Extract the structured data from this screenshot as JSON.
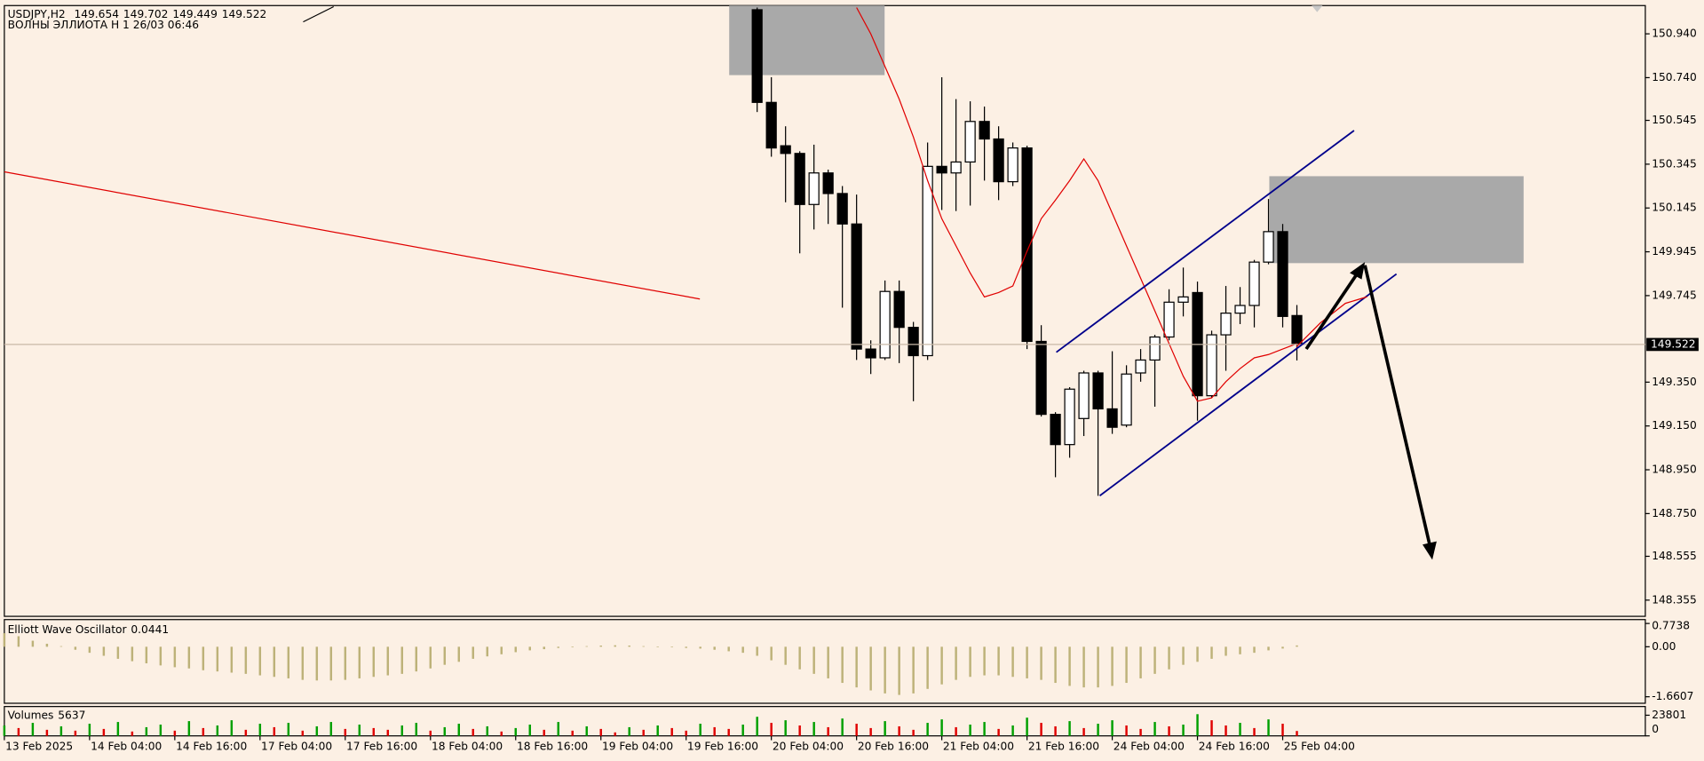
{
  "chart_data": [
    {
      "type": "candlestick",
      "symbol": "USDJPY,H2",
      "subtitle": "ВОЛНЫ ЭЛЛИОТА H 1 26/03 06:46",
      "xlim": [
        0,
        115.53
      ],
      "xticks": [
        {
          "value": 0,
          "label": "13 Feb 2025"
        },
        {
          "value": 6,
          "label": "14 Feb 04:00"
        },
        {
          "value": 12,
          "label": "14 Feb 16:00"
        },
        {
          "value": 18,
          "label": "17 Feb 04:00"
        },
        {
          "value": 24,
          "label": "17 Feb 16:00"
        },
        {
          "value": 30,
          "label": "18 Feb 04:00"
        },
        {
          "value": 36,
          "label": "18 Feb 16:00"
        },
        {
          "value": 42,
          "label": "19 Feb 04:00"
        },
        {
          "value": 48,
          "label": "19 Feb 16:00"
        },
        {
          "value": 54,
          "label": "20 Feb 04:00"
        },
        {
          "value": 60,
          "label": "20 Feb 16:00"
        },
        {
          "value": 66,
          "label": "21 Feb 04:00"
        },
        {
          "value": 72,
          "label": "21 Feb 16:00"
        },
        {
          "value": 78,
          "label": "24 Feb 04:00"
        },
        {
          "value": 84,
          "label": "24 Feb 16:00"
        },
        {
          "value": 90,
          "label": "25 Feb 04:00"
        }
      ],
      "ylim": [
        148.281,
        151.069
      ],
      "yticks": [
        {
          "value": 150.94,
          "label": "150.940"
        },
        {
          "value": 150.74,
          "label": "150.740"
        },
        150.545,
        150.345,
        150.145,
        149.945,
        149.745,
        {
          "value": 149.35,
          "label": "149.350"
        },
        {
          "value": 149.15,
          "label": "149.150"
        },
        {
          "value": 148.95,
          "label": "148.950"
        },
        {
          "value": 148.75,
          "label": "148.750"
        },
        148.555,
        148.355
      ],
      "up_color": "#ffffff",
      "down_color": "#000000",
      "open": [
        null,
        null,
        null,
        null,
        null,
        null,
        null,
        null,
        null,
        null,
        null,
        null,
        null,
        null,
        null,
        null,
        null,
        null,
        null,
        null,
        null,
        null,
        null,
        null,
        null,
        null,
        null,
        null,
        null,
        null,
        null,
        null,
        null,
        null,
        null,
        null,
        null,
        null,
        null,
        null,
        null,
        null,
        null,
        null,
        null,
        null,
        null,
        null,
        null,
        null,
        null,
        null,
        null,
        151.05,
        150.627,
        150.429,
        150.394,
        150.161,
        150.305,
        150.211,
        150.072,
        149.501,
        149.461,
        149.764,
        149.6,
        149.471,
        150.335,
        150.305,
        150.355,
        150.54,
        150.46,
        150.265,
        150.419,
        149.536,
        149.203,
        149.065,
        149.184,
        149.392,
        149.228,
        149.154,
        149.392,
        149.451,
        149.556,
        149.715,
        149.759,
        149.288,
        149.566,
        149.665,
        149.7,
        149.898,
        150.037,
        149.654
      ],
      "high": [
        null,
        null,
        null,
        null,
        null,
        null,
        null,
        null,
        null,
        null,
        null,
        null,
        null,
        null,
        null,
        null,
        null,
        null,
        null,
        null,
        null,
        null,
        null,
        null,
        null,
        null,
        null,
        null,
        null,
        null,
        null,
        null,
        null,
        null,
        null,
        null,
        null,
        null,
        null,
        null,
        null,
        null,
        null,
        null,
        null,
        null,
        null,
        null,
        null,
        null,
        null,
        null,
        null,
        151.06,
        150.742,
        150.518,
        150.404,
        150.434,
        150.32,
        150.245,
        150.206,
        149.541,
        149.814,
        149.814,
        149.625,
        150.444,
        150.742,
        150.642,
        150.632,
        150.608,
        150.518,
        150.444,
        150.429,
        149.61,
        149.213,
        149.327,
        149.402,
        149.402,
        149.491,
        149.427,
        149.501,
        149.566,
        149.774,
        149.873,
        149.809,
        149.585,
        149.789,
        149.784,
        149.908,
        150.186,
        150.072,
        149.702
      ],
      "low": [
        null,
        null,
        null,
        null,
        null,
        null,
        null,
        null,
        null,
        null,
        null,
        null,
        null,
        null,
        null,
        null,
        null,
        null,
        null,
        null,
        null,
        null,
        null,
        null,
        null,
        null,
        null,
        null,
        null,
        null,
        null,
        null,
        null,
        null,
        null,
        null,
        null,
        null,
        null,
        null,
        null,
        null,
        null,
        null,
        null,
        null,
        null,
        null,
        null,
        null,
        null,
        null,
        null,
        150.583,
        150.379,
        150.171,
        149.938,
        150.047,
        150.072,
        149.69,
        149.451,
        149.387,
        149.451,
        149.437,
        149.263,
        149.451,
        150.136,
        150.131,
        150.156,
        150.27,
        150.181,
        150.245,
        149.501,
        149.193,
        148.916,
        149.005,
        149.104,
        148.831,
        149.114,
        149.144,
        149.352,
        149.238,
        149.541,
        149.65,
        149.174,
        149.278,
        149.402,
        149.615,
        149.6,
        149.888,
        149.6,
        149.449
      ],
      "close": [
        null,
        null,
        null,
        null,
        null,
        null,
        null,
        null,
        null,
        null,
        null,
        null,
        null,
        null,
        null,
        null,
        null,
        null,
        null,
        null,
        null,
        null,
        null,
        null,
        null,
        null,
        null,
        null,
        null,
        null,
        null,
        null,
        null,
        null,
        null,
        null,
        null,
        null,
        null,
        null,
        null,
        null,
        null,
        null,
        null,
        null,
        null,
        null,
        null,
        null,
        null,
        null,
        null,
        150.627,
        150.419,
        150.394,
        150.161,
        150.305,
        150.211,
        150.072,
        149.501,
        149.461,
        149.764,
        149.6,
        149.471,
        150.335,
        150.305,
        150.355,
        150.54,
        150.46,
        150.265,
        150.419,
        149.536,
        149.203,
        149.065,
        149.318,
        149.392,
        149.228,
        149.144,
        149.387,
        149.451,
        149.556,
        149.715,
        149.739,
        149.288,
        149.566,
        149.665,
        149.7,
        149.898,
        150.037,
        149.65,
        149.522
      ],
      "ma": {
        "color": "#e00000",
        "values": [
          null,
          null,
          null,
          null,
          null,
          null,
          null,
          null,
          null,
          null,
          null,
          null,
          null,
          null,
          null,
          null,
          null,
          null,
          null,
          null,
          null,
          null,
          null,
          null,
          null,
          null,
          null,
          null,
          null,
          null,
          null,
          null,
          null,
          null,
          null,
          null,
          null,
          null,
          null,
          null,
          null,
          null,
          null,
          null,
          null,
          null,
          null,
          null,
          null,
          null,
          null,
          null,
          null,
          null,
          null,
          null,
          null,
          null,
          null,
          null,
          151.06,
          150.94,
          150.791,
          150.642,
          150.469,
          150.27,
          150.096,
          149.972,
          149.848,
          149.739,
          149.759,
          149.789,
          149.948,
          150.096,
          150.181,
          150.27,
          150.369,
          150.27,
          150.121,
          149.972,
          149.824,
          149.675,
          149.526,
          149.377,
          149.263,
          149.278,
          149.352,
          149.412,
          149.461,
          149.476,
          149.501,
          149.526
        ]
      }
    },
    {
      "type": "bar",
      "name": "Elliott Wave Oscillator",
      "color": "#bdb279",
      "ylim": [
        -1.877,
        0.9025
      ],
      "yticks": [
        0.7738,
        {
          "value": 0,
          "label": "0.00"
        },
        -1.6607
      ],
      "values": [
        0.45,
        0.35,
        0.2,
        0.1,
        0.02,
        -0.1,
        -0.2,
        -0.3,
        -0.4,
        -0.48,
        -0.55,
        -0.62,
        -0.68,
        -0.72,
        -0.78,
        -0.82,
        -0.86,
        -0.9,
        -0.95,
        -1.0,
        -1.05,
        -1.1,
        -1.12,
        -1.12,
        -1.1,
        -1.05,
        -1.0,
        -0.95,
        -0.9,
        -0.82,
        -0.72,
        -0.6,
        -0.5,
        -0.4,
        -0.32,
        -0.25,
        -0.18,
        -0.12,
        -0.08,
        -0.04,
        -0.02,
        0.02,
        0.04,
        0.05,
        0.04,
        0.02,
        0.01,
        -0.02,
        -0.04,
        -0.06,
        -0.1,
        -0.15,
        -0.2,
        -0.3,
        -0.45,
        -0.6,
        -0.75,
        -0.9,
        -1.05,
        -1.2,
        -1.35,
        -1.45,
        -1.55,
        -1.6,
        -1.55,
        -1.4,
        -1.25,
        -1.1,
        -1.0,
        -0.95,
        -0.95,
        -1.0,
        -1.05,
        -1.1,
        -1.2,
        -1.3,
        -1.35,
        -1.35,
        -1.3,
        -1.2,
        -1.05,
        -0.9,
        -0.75,
        -0.6,
        -0.5,
        -0.4,
        -0.3,
        -0.25,
        -0.2,
        -0.12,
        -0.06,
        0.0441
      ]
    },
    {
      "type": "bar",
      "name": "Volumes",
      "up_color": "#00a000",
      "down_color": "#e00000",
      "ylim": [
        0,
        33820
      ],
      "yticks": [
        23801,
        0
      ],
      "values": [
        12000,
        9000,
        15000,
        7000,
        11000,
        6000,
        14000,
        8000,
        16000,
        5000,
        10000,
        13000,
        6000,
        17000,
        9000,
        12000,
        18000,
        7000,
        14000,
        10000,
        15000,
        6000,
        11000,
        16000,
        8000,
        13000,
        9000,
        7000,
        12000,
        15000,
        6000,
        10000,
        14000,
        8000,
        11000,
        5000,
        9000,
        13000,
        7000,
        16000,
        6000,
        11000,
        8000,
        4000,
        10000,
        7000,
        12000,
        9000,
        6000,
        14000,
        10000,
        8000,
        13000,
        22000,
        15000,
        18000,
        12000,
        16000,
        10000,
        20000,
        14000,
        9000,
        17000,
        11000,
        7000,
        15000,
        19000,
        10000,
        13000,
        16000,
        8000,
        12000,
        21000,
        15000,
        11000,
        17000,
        9000,
        14000,
        18000,
        12000,
        8000,
        16000,
        11000,
        13000,
        25000,
        18000,
        12000,
        15000,
        9000,
        19000,
        14000,
        5637
      ]
    }
  ]
}
